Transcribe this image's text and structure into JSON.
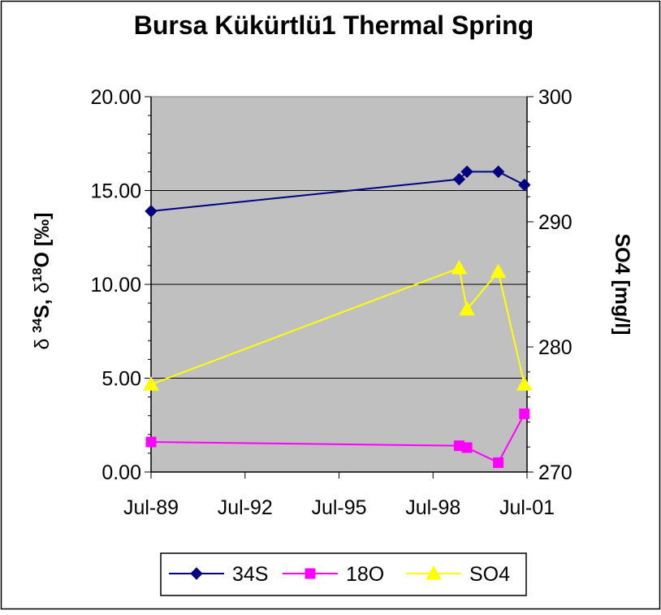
{
  "chart_data": {
    "type": "line",
    "title": "Bursa Kükürtlü1 Thermal Spring",
    "ylabel_left": "δ 34S, δ18O [‰]",
    "ylabel_right": "SO4 [mg/l]",
    "xlabel": "",
    "x_ticks": [
      "Jul-89",
      "Jul-92",
      "Jul-95",
      "Jul-98",
      "Jul-01"
    ],
    "xlim": [
      "1989-07",
      "2001-07"
    ],
    "ylim_left": [
      0,
      20
    ],
    "ylim_right": [
      270,
      300
    ],
    "y_ticks_left": [
      "0.00",
      "5.00",
      "10.00",
      "15.00",
      "20.00"
    ],
    "y_ticks_right": [
      "270",
      "280",
      "290",
      "300"
    ],
    "grid": "horizontal",
    "legend_position": "bottom",
    "plot_background": "#c0c0c0",
    "series": [
      {
        "name": "34S",
        "axis": "left",
        "color": "#000080",
        "marker": "diamond",
        "x": [
          "1989-07",
          "1999-05",
          "1999-08",
          "2000-08",
          "2001-06"
        ],
        "y": [
          13.9,
          15.6,
          16.0,
          16.0,
          15.3
        ]
      },
      {
        "name": "18O",
        "axis": "left",
        "color": "#ff00ff",
        "marker": "square",
        "x": [
          "1989-07",
          "1999-05",
          "1999-08",
          "2000-08",
          "2001-06"
        ],
        "y": [
          1.6,
          1.4,
          1.3,
          0.5,
          3.1
        ]
      },
      {
        "name": "SO4",
        "axis": "right",
        "color": "#ffff00",
        "marker": "triangle",
        "x": [
          "1989-07",
          "1999-05",
          "1999-08",
          "2000-08",
          "2001-06"
        ],
        "y": [
          277,
          286.3,
          283,
          286,
          277
        ]
      }
    ]
  }
}
